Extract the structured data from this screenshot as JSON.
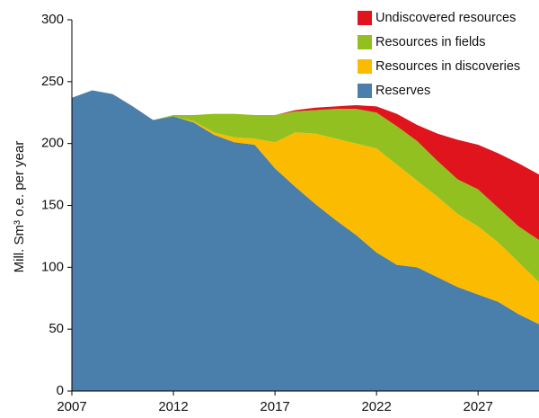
{
  "chart_data": {
    "type": "stacked_area",
    "y_label": "Mill. Sm³ o.e. per year",
    "x": [
      2007,
      2008,
      2009,
      2010,
      2011,
      2012,
      2013,
      2014,
      2015,
      2016,
      2017,
      2018,
      2019,
      2020,
      2021,
      2022,
      2023,
      2024,
      2025,
      2026,
      2027,
      2028,
      2029,
      2030
    ],
    "series": [
      {
        "name": "Reserves",
        "color": "#4a7eab",
        "values": [
          237,
          243,
          240,
          230,
          219,
          222,
          217,
          207,
          201,
          199,
          180,
          165,
          151,
          138,
          126,
          112,
          102,
          100,
          92,
          84,
          78,
          72,
          62,
          54
        ]
      },
      {
        "name": "Resources in discoveries",
        "color": "#fbbb00",
        "values": [
          0,
          0,
          0,
          0,
          0,
          0,
          1,
          2,
          4,
          5,
          21,
          44,
          57,
          66,
          74,
          84,
          81,
          70,
          65,
          59,
          55,
          48,
          42,
          34
        ]
      },
      {
        "name": "Resources in fields",
        "color": "#92c020",
        "values": [
          0,
          0,
          0,
          0,
          0,
          1,
          5,
          15,
          19,
          19,
          22,
          17,
          19,
          24,
          28,
          29,
          31,
          32,
          29,
          28,
          30,
          28,
          29,
          34
        ]
      },
      {
        "name": "Undiscovered resources",
        "color": "#e0141c",
        "values": [
          0,
          0,
          0,
          0,
          0,
          0,
          0,
          0,
          0,
          0,
          0,
          1,
          2,
          2,
          3,
          5,
          10,
          13,
          22,
          32,
          36,
          44,
          51,
          53
        ]
      }
    ],
    "xlim": [
      2007,
      2030
    ],
    "xticks": [
      2007,
      2012,
      2017,
      2022,
      2027
    ],
    "ylim": [
      0,
      300
    ],
    "yticks": [
      0,
      50,
      100,
      150,
      200,
      250,
      300
    ],
    "legend": "top-right"
  }
}
